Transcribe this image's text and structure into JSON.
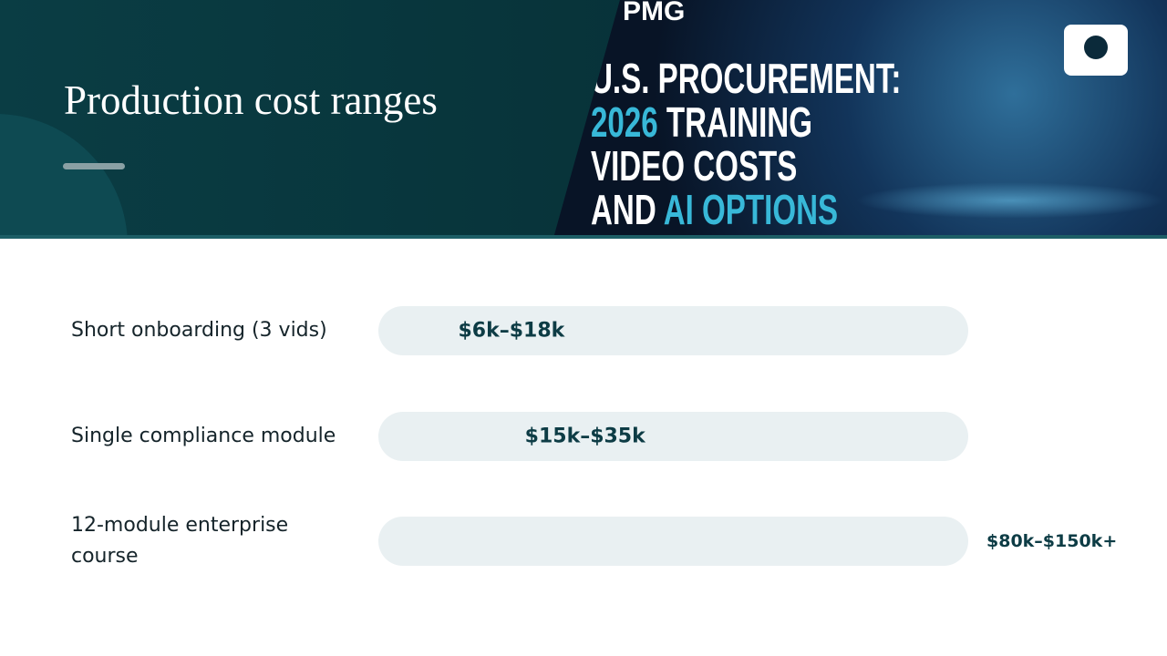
{
  "header": {
    "title": "Production cost ranges",
    "banner": {
      "logo": "PMG",
      "lines": [
        [
          "U.S. PROCUREMENT:"
        ],
        [
          "2026",
          " TRAINING"
        ],
        [
          "VIDEO COSTS"
        ],
        [
          "AND ",
          "AI OPTIONS"
        ]
      ]
    }
  },
  "chart_data": {
    "type": "range-bar",
    "categories": [
      "Short onboarding (3 vids)",
      "Single compliance module",
      "12-module enterprise course"
    ],
    "low": [
      6,
      15,
      80
    ],
    "high": [
      18,
      35,
      150
    ],
    "value_labels": [
      "$6k–$18k",
      "$15k–$35k",
      "$80k–$150k+"
    ],
    "color": "#0b5c66",
    "track_color": "#e9f0f2"
  }
}
